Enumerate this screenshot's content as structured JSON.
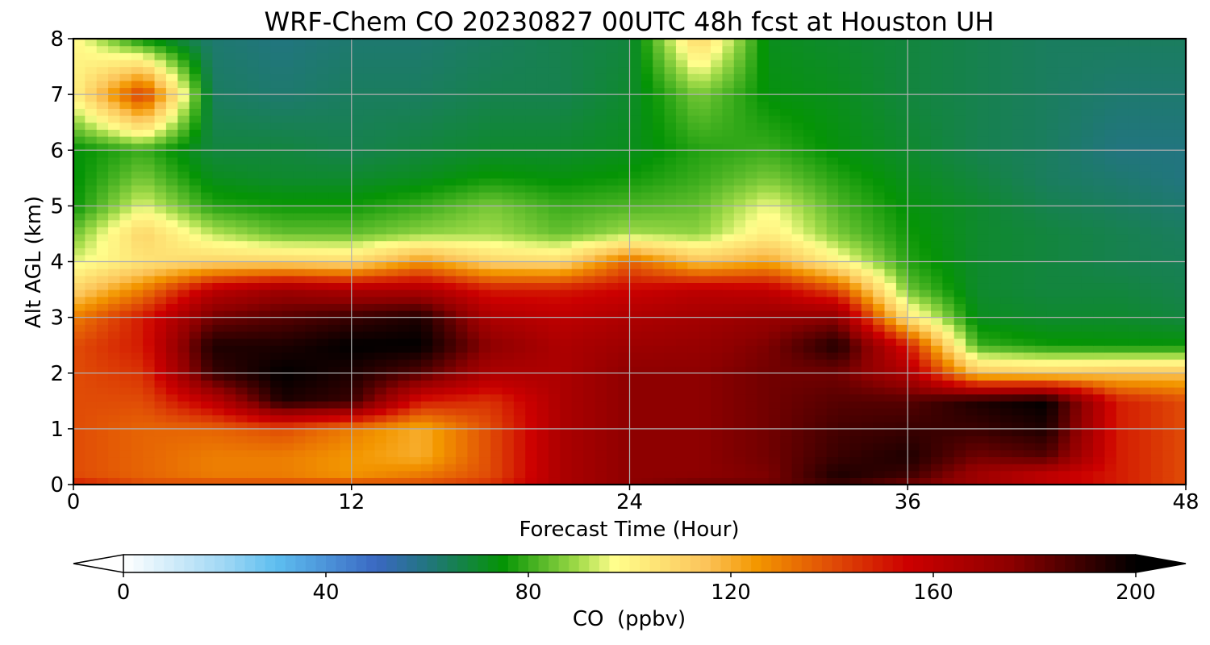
{
  "chart_data": {
    "type": "heatmap",
    "title": "WRF-Chem CO  20230827 00UTC 48h fcst at Houston UH",
    "xlabel": "Forecast Time (Hour)",
    "ylabel": "Alt AGL (km)",
    "xlim": [
      0,
      48
    ],
    "ylim": [
      0,
      8
    ],
    "x_ticks": [
      "0",
      "12",
      "24",
      "36",
      "48"
    ],
    "y_ticks": [
      "0",
      "1",
      "2",
      "3",
      "4",
      "5",
      "6",
      "7",
      "8"
    ],
    "grid": true,
    "colorbar": {
      "label": "CO  (ppbv)",
      "range": [
        0,
        200
      ],
      "ticks": [
        "0",
        "40",
        "80",
        "120",
        "160",
        "200"
      ],
      "extend": "both",
      "colors": {
        "0": "#ffffff",
        "20": "#9fd7f4",
        "30": "#5ebff0",
        "50": "#3a68c2",
        "60": "#22757f",
        "75": "#059405",
        "90": "#a4dc4a",
        "97": "#fffe8c",
        "115": "#fcc45a",
        "125": "#f39700",
        "140": "#e04c06",
        "155": "#cc0000",
        "175": "#8e0000",
        "200": "#000000"
      }
    },
    "levels_km": [
      0,
      0.2,
      0.5,
      1,
      1.5,
      2,
      2.5,
      3,
      3.5,
      4,
      4.5,
      5,
      5.5,
      6,
      7,
      8
    ],
    "times_h": [
      0,
      3,
      6,
      9,
      12,
      15,
      18,
      21,
      24,
      27,
      30,
      33,
      36,
      39,
      42,
      45,
      48
    ],
    "values_ppbv": [
      [
        150,
        140,
        140,
        140,
        140,
        140,
        145,
        165,
        175,
        180,
        180,
        190,
        180,
        170,
        160,
        150,
        140
      ],
      [
        140,
        135,
        130,
        130,
        125,
        130,
        140,
        165,
        175,
        175,
        178,
        195,
        190,
        170,
        160,
        150,
        140
      ],
      [
        140,
        135,
        130,
        130,
        125,
        120,
        140,
        165,
        175,
        175,
        180,
        190,
        195,
        180,
        185,
        150,
        140
      ],
      [
        140,
        135,
        135,
        140,
        130,
        120,
        140,
        165,
        175,
        175,
        180,
        188,
        190,
        190,
        195,
        150,
        140
      ],
      [
        140,
        140,
        160,
        195,
        190,
        150,
        145,
        165,
        175,
        175,
        180,
        185,
        185,
        195,
        200,
        150,
        140
      ],
      [
        140,
        145,
        190,
        200,
        195,
        185,
        165,
        165,
        175,
        175,
        180,
        180,
        165,
        115,
        112,
        115,
        115
      ],
      [
        140,
        150,
        195,
        195,
        200,
        200,
        175,
        165,
        170,
        172,
        178,
        195,
        150,
        80,
        76,
        75,
        75
      ],
      [
        130,
        150,
        180,
        185,
        190,
        195,
        165,
        160,
        165,
        168,
        172,
        175,
        105,
        72,
        70,
        70,
        68
      ],
      [
        110,
        130,
        160,
        170,
        165,
        165,
        150,
        150,
        155,
        160,
        158,
        140,
        85,
        70,
        68,
        68,
        66
      ],
      [
        95,
        105,
        110,
        110,
        108,
        125,
        110,
        108,
        135,
        115,
        122,
        100,
        78,
        70,
        68,
        66,
        65
      ],
      [
        85,
        110,
        92,
        84,
        84,
        88,
        90,
        84,
        90,
        88,
        102,
        86,
        76,
        70,
        68,
        66,
        64
      ],
      [
        75,
        95,
        78,
        76,
        76,
        80,
        86,
        80,
        82,
        84,
        96,
        82,
        74,
        70,
        66,
        64,
        62
      ],
      [
        74,
        86,
        72,
        70,
        70,
        72,
        76,
        74,
        76,
        80,
        86,
        78,
        72,
        68,
        64,
        62,
        60
      ],
      [
        74,
        80,
        68,
        68,
        66,
        68,
        70,
        70,
        72,
        78,
        80,
        74,
        70,
        66,
        64,
        60,
        60
      ],
      [
        100,
        145,
        64,
        62,
        64,
        64,
        66,
        66,
        70,
        86,
        74,
        72,
        68,
        66,
        64,
        62,
        62
      ],
      [
        100,
        74,
        62,
        60,
        62,
        62,
        64,
        66,
        68,
        110,
        72,
        70,
        68,
        66,
        64,
        64,
        64
      ]
    ]
  }
}
